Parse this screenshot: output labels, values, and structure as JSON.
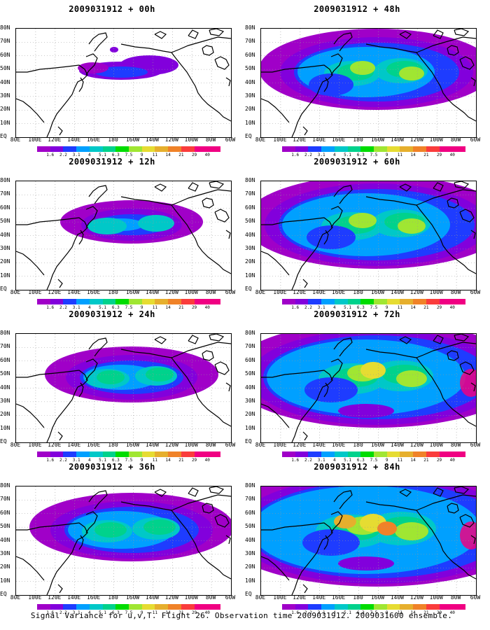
{
  "figure_caption": "Signal Variance for u,v,T. Flight 26. Observation time 2009031912. 2009031600 ensemble.",
  "panels": [
    {
      "title": "2009031912 + 00h",
      "level": 0
    },
    {
      "title": "2009031912 + 48h",
      "level": 4
    },
    {
      "title": "2009031912 + 12h",
      "level": 1
    },
    {
      "title": "2009031912 + 60h",
      "level": 5
    },
    {
      "title": "2009031912 + 24h",
      "level": 2
    },
    {
      "title": "2009031912 + 72h",
      "level": 6
    },
    {
      "title": "2009031912 + 36h",
      "level": 3
    },
    {
      "title": "2009031912 + 84h",
      "level": 7
    }
  ],
  "lat_labels": [
    "80N",
    "70N",
    "60N",
    "50N",
    "40N",
    "30N",
    "20N",
    "10N",
    "EQ"
  ],
  "lon_labels": [
    "80E",
    "100E",
    "120E",
    "140E",
    "160E",
    "180",
    "160W",
    "140W",
    "120W",
    "100W",
    "80W",
    "60W"
  ],
  "colorbar": {
    "labels": [
      "1.6",
      "2.2",
      "3.1",
      "4",
      "5.1",
      "6.3",
      "7.5",
      "9",
      "11",
      "14",
      "21",
      "29",
      "40"
    ],
    "colors": [
      "#a000c8",
      "#8200dc",
      "#1e3cff",
      "#00a0ff",
      "#00c8c8",
      "#00d28c",
      "#00dc00",
      "#a0e632",
      "#e6dc32",
      "#e6af2d",
      "#f08228",
      "#fa3c3c",
      "#f00082"
    ]
  }
}
